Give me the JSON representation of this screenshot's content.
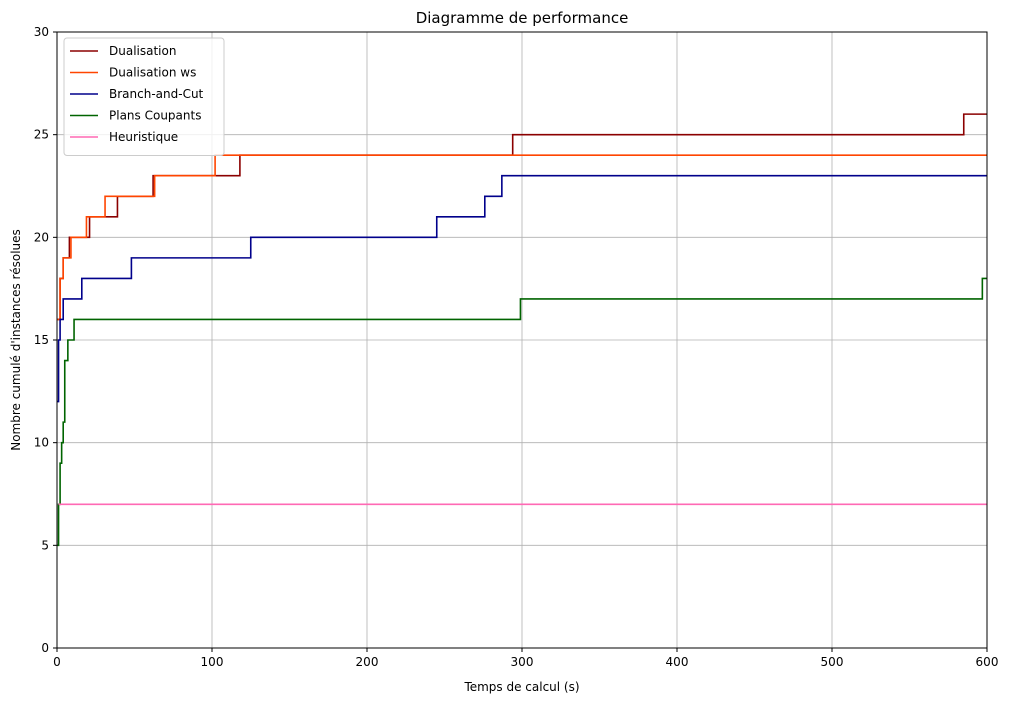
{
  "chart_data": {
    "type": "line",
    "step": true,
    "title": "Diagramme de performance",
    "xlabel": "Temps de calcul (s)",
    "ylabel": "Nombre cumulé d'instances résolues",
    "xlim": [
      0,
      600
    ],
    "ylim": [
      0,
      30
    ],
    "xticks": [
      0,
      100,
      200,
      300,
      400,
      500,
      600
    ],
    "yticks": [
      0,
      5,
      10,
      15,
      20,
      25,
      30
    ],
    "grid": true,
    "legend_position": "top-left",
    "series": [
      {
        "name": "Dualisation",
        "color": "#8b0000",
        "points": [
          [
            0,
            16
          ],
          [
            2,
            18
          ],
          [
            4,
            19
          ],
          [
            8,
            20
          ],
          [
            21,
            21
          ],
          [
            39,
            22
          ],
          [
            62,
            23
          ],
          [
            118,
            24
          ],
          [
            294,
            25
          ],
          [
            585,
            26
          ],
          [
            600,
            26
          ]
        ]
      },
      {
        "name": "Dualisation ws",
        "color": "#ff4500",
        "points": [
          [
            0,
            16
          ],
          [
            2,
            18
          ],
          [
            4,
            19
          ],
          [
            9,
            20
          ],
          [
            19,
            21
          ],
          [
            31,
            22
          ],
          [
            63,
            23
          ],
          [
            102,
            24
          ],
          [
            600,
            24
          ]
        ]
      },
      {
        "name": "Branch-and-Cut",
        "color": "#00008b",
        "points": [
          [
            0,
            12
          ],
          [
            1,
            15
          ],
          [
            2,
            16
          ],
          [
            4,
            17
          ],
          [
            16,
            18
          ],
          [
            48,
            19
          ],
          [
            125,
            20
          ],
          [
            245,
            21
          ],
          [
            276,
            22
          ],
          [
            287,
            23
          ],
          [
            600,
            23
          ]
        ]
      },
      {
        "name": "Plans Coupants",
        "color": "#006400",
        "points": [
          [
            0,
            5
          ],
          [
            1,
            7
          ],
          [
            2,
            9
          ],
          [
            3,
            10
          ],
          [
            4,
            11
          ],
          [
            5,
            14
          ],
          [
            7,
            15
          ],
          [
            11,
            16
          ],
          [
            299,
            17
          ],
          [
            597,
            18
          ],
          [
            600,
            18
          ]
        ]
      },
      {
        "name": "Heuristique",
        "color": "#ff69b4",
        "points": [
          [
            1,
            7
          ],
          [
            600,
            7
          ]
        ]
      }
    ]
  }
}
